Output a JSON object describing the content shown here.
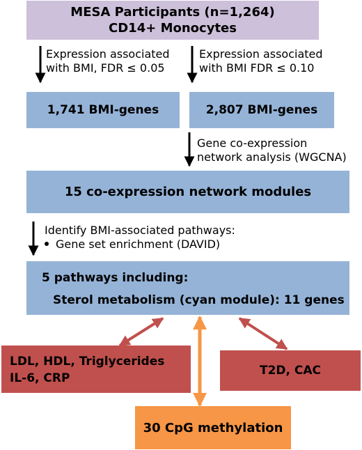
{
  "participants": {
    "line1": "MESA Participants (n=1,264)",
    "line2": "CD14+ Monocytes"
  },
  "step_left": {
    "line1": "Expression associated",
    "line2": "with BMI, FDR  ≤ 0.05"
  },
  "step_right": {
    "line1": "Expression associated",
    "line2": "with BMI FDR  ≤ 0.10"
  },
  "genes_left": "1,741 BMI-genes",
  "genes_right": "2,807 BMI-genes",
  "network_step": {
    "line1": "Gene co-expression",
    "line2": "network analysis (WGCNA)"
  },
  "modules": "15 co-expression network modules",
  "pathway_step": {
    "line1": "Identify BMI-associated pathways:",
    "bullet": "Gene set enrichment (DAVID)"
  },
  "pathways": {
    "line1": "5 pathways including:",
    "line2": "Sterol metabolism (cyan module): 11 genes"
  },
  "lipids": {
    "line1": "LDL, HDL, Triglycerides",
    "line2": "IL-6, CRP"
  },
  "t2d": "T2D, CAC",
  "methylation": "30 CpG methylation",
  "colors": {
    "purple_box": "#ccc0da",
    "blue_box": "#95b3d7",
    "red_box": "#c0504d",
    "orange_box": "#f79646",
    "red_arrow": "#c0504d",
    "orange_arrow": "#f79646"
  }
}
